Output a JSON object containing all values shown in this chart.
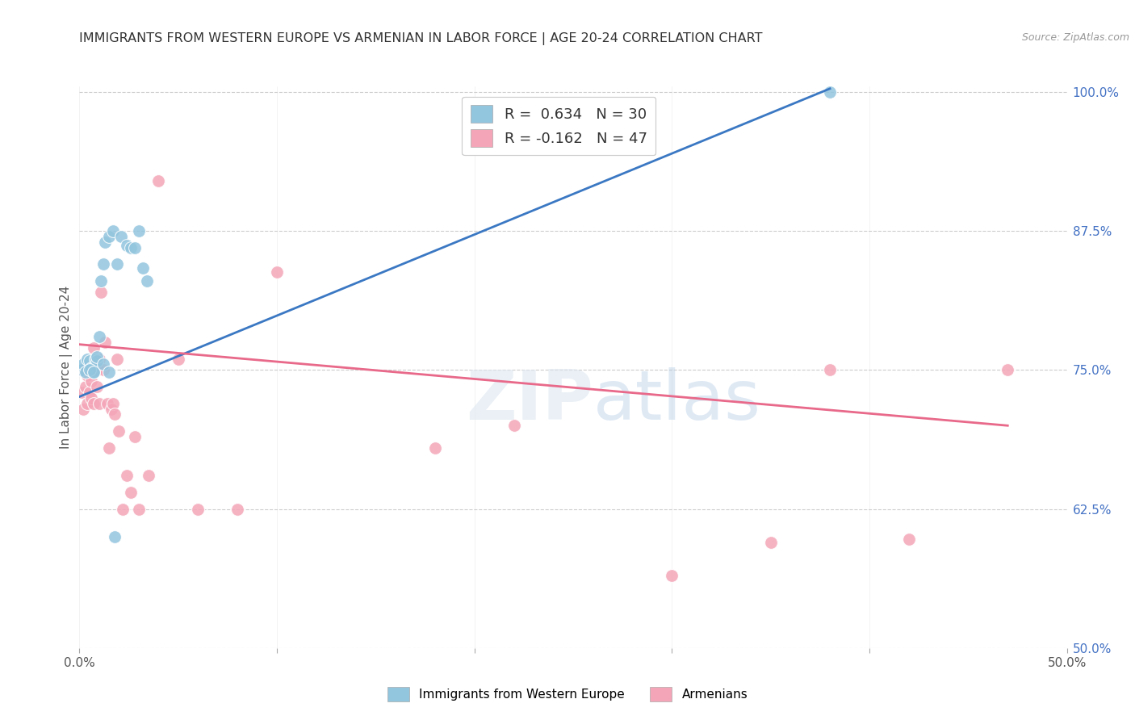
{
  "title": "IMMIGRANTS FROM WESTERN EUROPE VS ARMENIAN IN LABOR FORCE | AGE 20-24 CORRELATION CHART",
  "source": "Source: ZipAtlas.com",
  "ylabel": "In Labor Force | Age 20-24",
  "xlim": [
    0.0,
    0.5
  ],
  "ylim": [
    0.5,
    1.005
  ],
  "xtick_positions": [
    0.0,
    0.1,
    0.2,
    0.3,
    0.4,
    0.5
  ],
  "xticklabels": [
    "0.0%",
    "",
    "",
    "",
    "",
    "50.0%"
  ],
  "ytick_positions": [
    0.5,
    0.625,
    0.75,
    0.875,
    1.0
  ],
  "yticklabels": [
    "50.0%",
    "62.5%",
    "75.0%",
    "87.5%",
    "100.0%"
  ],
  "blue_R": 0.634,
  "blue_N": 30,
  "pink_R": -0.162,
  "pink_N": 47,
  "blue_color": "#92c5de",
  "pink_color": "#f4a6b8",
  "blue_line_color": "#3b78c3",
  "pink_line_color": "#e8698a",
  "blue_points_x": [
    0.001,
    0.002,
    0.003,
    0.004,
    0.005,
    0.006,
    0.007,
    0.008,
    0.009,
    0.01,
    0.011,
    0.012,
    0.013,
    0.015,
    0.017,
    0.019,
    0.021,
    0.024,
    0.026,
    0.028,
    0.03,
    0.032,
    0.034,
    0.005,
    0.007,
    0.009,
    0.012,
    0.015,
    0.018,
    0.38
  ],
  "blue_points_y": [
    0.75,
    0.755,
    0.748,
    0.76,
    0.758,
    0.752,
    0.748,
    0.76,
    0.758,
    0.78,
    0.83,
    0.845,
    0.865,
    0.87,
    0.875,
    0.845,
    0.87,
    0.862,
    0.86,
    0.86,
    0.875,
    0.842,
    0.83,
    0.75,
    0.748,
    0.762,
    0.755,
    0.748,
    0.6,
    1.0
  ],
  "pink_points_x": [
    0.001,
    0.001,
    0.002,
    0.003,
    0.003,
    0.004,
    0.004,
    0.005,
    0.005,
    0.006,
    0.006,
    0.007,
    0.007,
    0.008,
    0.008,
    0.009,
    0.009,
    0.01,
    0.01,
    0.011,
    0.012,
    0.013,
    0.014,
    0.015,
    0.016,
    0.017,
    0.018,
    0.019,
    0.02,
    0.022,
    0.024,
    0.026,
    0.028,
    0.03,
    0.035,
    0.04,
    0.05,
    0.06,
    0.08,
    0.1,
    0.18,
    0.22,
    0.3,
    0.35,
    0.38,
    0.42,
    0.47
  ],
  "pink_points_y": [
    0.75,
    0.73,
    0.715,
    0.75,
    0.735,
    0.72,
    0.745,
    0.75,
    0.73,
    0.725,
    0.74,
    0.72,
    0.77,
    0.76,
    0.752,
    0.75,
    0.735,
    0.76,
    0.72,
    0.82,
    0.75,
    0.775,
    0.72,
    0.68,
    0.715,
    0.72,
    0.71,
    0.76,
    0.695,
    0.625,
    0.655,
    0.64,
    0.69,
    0.625,
    0.655,
    0.92,
    0.76,
    0.625,
    0.625,
    0.838,
    0.68,
    0.7,
    0.565,
    0.595,
    0.75,
    0.598,
    0.75
  ],
  "blue_line_x": [
    0.0,
    0.38
  ],
  "blue_line_y": [
    0.726,
    1.003
  ],
  "pink_line_x": [
    0.0,
    0.47
  ],
  "pink_line_y": [
    0.773,
    0.7
  ]
}
